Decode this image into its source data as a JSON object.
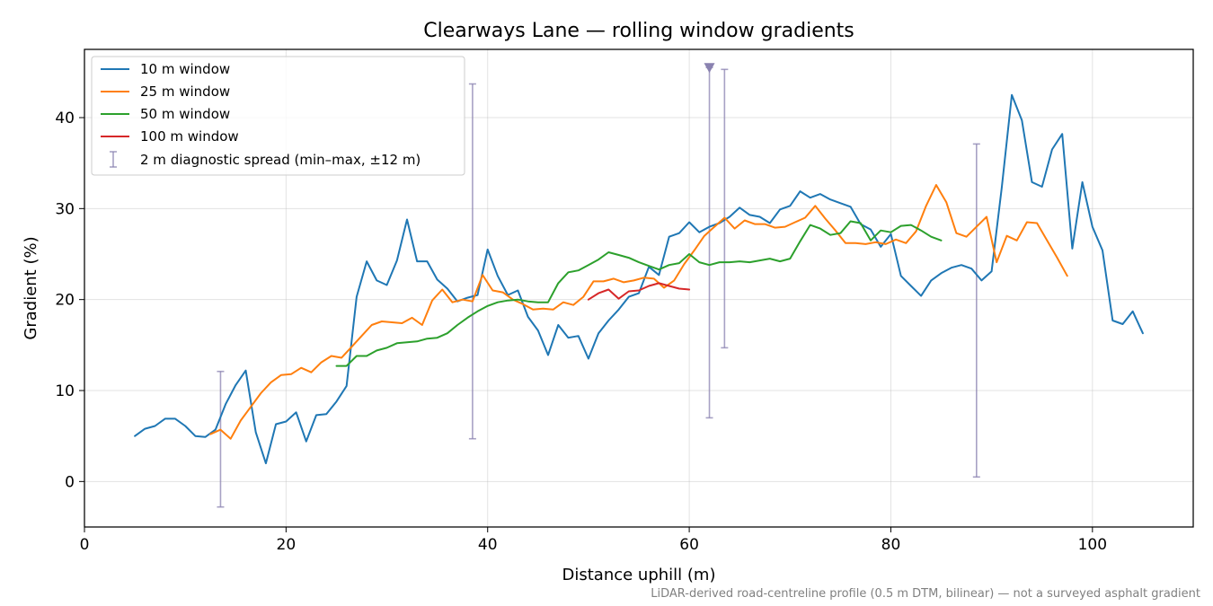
{
  "chart_data": {
    "type": "line",
    "title": "Clearways Lane — rolling window gradients",
    "xlabel": "Distance uphill (m)",
    "ylabel": "Gradient (%)",
    "xlim": [
      0,
      110
    ],
    "ylim": [
      -5,
      47.5
    ],
    "xticks": [
      0,
      20,
      40,
      60,
      80,
      100
    ],
    "yticks": [
      0,
      10,
      20,
      30,
      40
    ],
    "grid": true,
    "legend_position": "top-left",
    "footnote": "LiDAR-derived road-centreline profile (0.5 m DTM, bilinear) — not a surveyed asphalt gradient",
    "series": [
      {
        "name": "10 m window",
        "color": "#1f77b4",
        "x": [
          5,
          6,
          7,
          8,
          9,
          10,
          11,
          12,
          13,
          14,
          15,
          16,
          17,
          18,
          19,
          20,
          21,
          22,
          23,
          24,
          25,
          26,
          27,
          28,
          29,
          30,
          31,
          32,
          33,
          34,
          35,
          36,
          37,
          38,
          39,
          40,
          41,
          42,
          43,
          44,
          45,
          46,
          47,
          48,
          49,
          50,
          51,
          52,
          53,
          54,
          55,
          56,
          57,
          58,
          59,
          60,
          61,
          62,
          63,
          64,
          65,
          66,
          67,
          68,
          69,
          70,
          71,
          72,
          73,
          74,
          75,
          76,
          77,
          78,
          79,
          80,
          81,
          82,
          83,
          84,
          85,
          86,
          87,
          88,
          89,
          90,
          91,
          92,
          93,
          94,
          95,
          96,
          97,
          98,
          99,
          100,
          101,
          102,
          103,
          104,
          105
        ],
        "y": [
          5.0,
          5.8,
          6.1,
          6.9,
          6.9,
          6.1,
          5.0,
          4.9,
          5.7,
          8.5,
          10.6,
          12.2,
          5.4,
          2.0,
          6.3,
          6.6,
          7.6,
          4.4,
          7.3,
          7.4,
          8.8,
          10.5,
          20.3,
          24.2,
          22.1,
          21.6,
          24.3,
          28.8,
          24.2,
          24.2,
          22.2,
          21.2,
          19.8,
          20.2,
          20.5,
          25.5,
          22.6,
          20.5,
          21.0,
          18.1,
          16.6,
          13.9,
          17.2,
          15.8,
          16.0,
          13.5,
          16.3,
          17.7,
          18.9,
          20.3,
          20.7,
          23.6,
          22.7,
          26.9,
          27.3,
          28.5,
          27.4,
          28.0,
          28.4,
          29.1,
          30.1,
          29.3,
          29.1,
          28.4,
          29.9,
          30.3,
          31.9,
          31.2,
          31.6,
          31.0,
          30.6,
          30.2,
          28.3,
          27.7,
          25.8,
          27.2,
          22.6,
          21.5,
          20.4,
          22.1,
          22.9,
          23.5,
          23.8,
          23.4,
          22.1,
          23.1,
          32.3,
          42.5,
          39.7,
          32.9,
          32.4,
          36.5,
          38.2,
          25.6,
          32.9,
          28.0,
          25.4,
          17.7,
          17.3,
          18.7,
          16.3
        ]
      },
      {
        "name": "25 m window",
        "color": "#ff7f0e",
        "x": [
          12.5,
          13.5,
          14.5,
          15.5,
          16.5,
          17.5,
          18.5,
          19.5,
          20.5,
          21.5,
          22.5,
          23.5,
          24.5,
          25.5,
          26.5,
          27.5,
          28.5,
          29.5,
          30.5,
          31.5,
          32.5,
          33.5,
          34.5,
          35.5,
          36.5,
          37.5,
          38.5,
          39.5,
          40.5,
          41.5,
          42.5,
          43.5,
          44.5,
          45.5,
          46.5,
          47.5,
          48.5,
          49.5,
          50.5,
          51.5,
          52.5,
          53.5,
          54.5,
          55.5,
          56.5,
          57.5,
          58.5,
          59.5,
          60.5,
          61.5,
          62.5,
          63.5,
          64.5,
          65.5,
          66.5,
          67.5,
          68.5,
          69.5,
          70.5,
          71.5,
          72.5,
          73.5,
          74.5,
          75.5,
          76.5,
          77.5,
          78.5,
          79.5,
          80.5,
          81.5,
          82.5,
          83.5,
          84.5,
          85.5,
          86.5,
          87.5,
          88.5,
          89.5,
          90.5,
          91.5,
          92.5,
          93.5,
          94.5,
          95.5,
          96.5,
          97.5
        ],
        "y": [
          5.2,
          5.7,
          4.7,
          6.7,
          8.2,
          9.7,
          10.9,
          11.7,
          11.8,
          12.5,
          12.0,
          13.1,
          13.8,
          13.6,
          14.8,
          16.0,
          17.2,
          17.6,
          17.5,
          17.4,
          18.0,
          17.2,
          19.9,
          21.1,
          19.7,
          20.0,
          19.8,
          22.7,
          21.0,
          20.8,
          20.0,
          19.5,
          18.9,
          19.0,
          18.9,
          19.7,
          19.4,
          20.3,
          22.0,
          22.0,
          22.3,
          21.9,
          22.1,
          22.4,
          22.3,
          21.3,
          22.1,
          23.9,
          25.4,
          27.0,
          28.0,
          29.0,
          27.8,
          28.7,
          28.3,
          28.3,
          27.9,
          28.0,
          28.5,
          29.0,
          30.3,
          28.9,
          27.6,
          26.2,
          26.2,
          26.1,
          26.3,
          26.1,
          26.6,
          26.2,
          27.5,
          30.3,
          32.6,
          30.7,
          27.3,
          26.9,
          28.0,
          29.1,
          24.1,
          27.0,
          26.5,
          28.5,
          28.4,
          26.5,
          24.6,
          22.6
        ]
      },
      {
        "name": "50 m window",
        "color": "#2ca02c",
        "x": [
          25,
          26,
          27,
          28,
          29,
          30,
          31,
          32,
          33,
          34,
          35,
          36,
          37,
          38,
          39,
          40,
          41,
          42,
          43,
          44,
          45,
          46,
          47,
          48,
          49,
          50,
          51,
          52,
          53,
          54,
          55,
          56,
          57,
          58,
          59,
          60,
          61,
          62,
          63,
          64,
          65,
          66,
          67,
          68,
          69,
          70,
          71,
          72,
          73,
          74,
          75,
          76,
          77,
          78,
          79,
          80,
          81,
          82,
          83,
          84,
          85
        ],
        "y": [
          12.7,
          12.7,
          13.8,
          13.8,
          14.4,
          14.7,
          15.2,
          15.3,
          15.4,
          15.7,
          15.8,
          16.3,
          17.2,
          18.0,
          18.7,
          19.3,
          19.7,
          19.9,
          20.0,
          19.8,
          19.7,
          19.7,
          21.8,
          23.0,
          23.2,
          23.8,
          24.4,
          25.2,
          24.9,
          24.6,
          24.1,
          23.7,
          23.3,
          23.8,
          24.0,
          25.0,
          24.1,
          23.8,
          24.1,
          24.1,
          24.2,
          24.1,
          24.3,
          24.5,
          24.2,
          24.5,
          26.4,
          28.2,
          27.8,
          27.1,
          27.3,
          28.6,
          28.4,
          26.5,
          27.6,
          27.4,
          28.1,
          28.2,
          27.6,
          26.9,
          26.5
        ]
      },
      {
        "name": "100 m window",
        "color": "#d62728",
        "x": [
          50,
          51,
          52,
          53,
          54,
          55,
          56,
          57,
          58,
          59,
          60
        ],
        "y": [
          20.0,
          20.7,
          21.1,
          20.1,
          20.9,
          21.0,
          21.5,
          21.8,
          21.5,
          21.2,
          21.1
        ]
      }
    ],
    "error_bars": {
      "name": "2 m diagnostic spread (min–max, ±12 m)",
      "color": "#8a82b0",
      "items": [
        {
          "x": 13.5,
          "min": -2.8,
          "max": 12.1
        },
        {
          "x": 38.5,
          "min": 4.7,
          "max": 43.7
        },
        {
          "x": 62.0,
          "min": 7.0,
          "max": 45.5
        },
        {
          "x": 63.5,
          "min": 14.7,
          "max": 45.3
        },
        {
          "x": 88.5,
          "min": 0.5,
          "max": 37.1
        }
      ]
    },
    "marker": {
      "shape": "triangle-down",
      "x": 62.0,
      "y": 45.5,
      "color": "#8a82b0"
    }
  }
}
